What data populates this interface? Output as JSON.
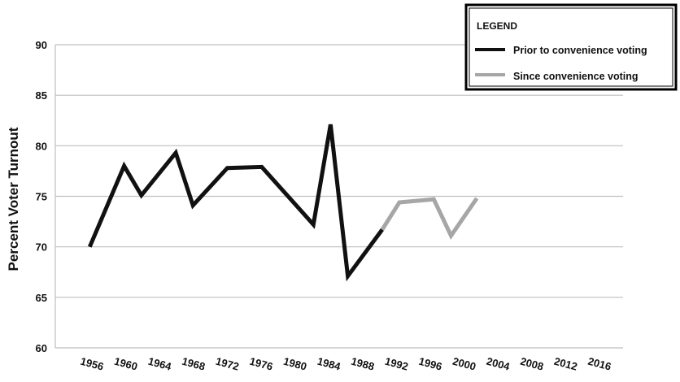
{
  "chart_data": {
    "type": "line",
    "ylabel": "Percent Voter Turnout",
    "xlabel": "",
    "title": "",
    "ylim": [
      60,
      90
    ],
    "yticks": [
      60,
      65,
      70,
      75,
      80,
      85,
      90
    ],
    "x_tick_labels": [
      "1956",
      "1960",
      "1964",
      "1968",
      "1972",
      "1976",
      "1980",
      "1984",
      "1988",
      "1992",
      "1996",
      "2000",
      "2004",
      "2008",
      "2012",
      "2016"
    ],
    "grid": "horizontal",
    "legend": {
      "title": "LEGEND",
      "placement": "top-right",
      "entries": [
        {
          "label": "Prior to convenience voting",
          "color": "#111111"
        },
        {
          "label": "Since convenience voting",
          "color": "#a6a6a6"
        }
      ]
    },
    "series": [
      {
        "name": "Prior to convenience voting",
        "color": "#111111",
        "points": [
          [
            1956,
            70.0
          ],
          [
            1960,
            78.0
          ],
          [
            1962,
            75.1
          ],
          [
            1966,
            79.3
          ],
          [
            1968,
            74.1
          ],
          [
            1972,
            77.8
          ],
          [
            1976,
            77.9
          ],
          [
            1982,
            72.2
          ],
          [
            1984,
            82.1
          ],
          [
            1986,
            67.1
          ],
          [
            1990,
            71.7
          ]
        ]
      },
      {
        "name": "Since convenience voting",
        "color": "#a6a6a6",
        "points": [
          [
            1990,
            71.7
          ],
          [
            1992,
            74.4
          ],
          [
            1996,
            74.7
          ],
          [
            1998,
            71.1
          ],
          [
            2001,
            74.8
          ]
        ]
      }
    ]
  }
}
